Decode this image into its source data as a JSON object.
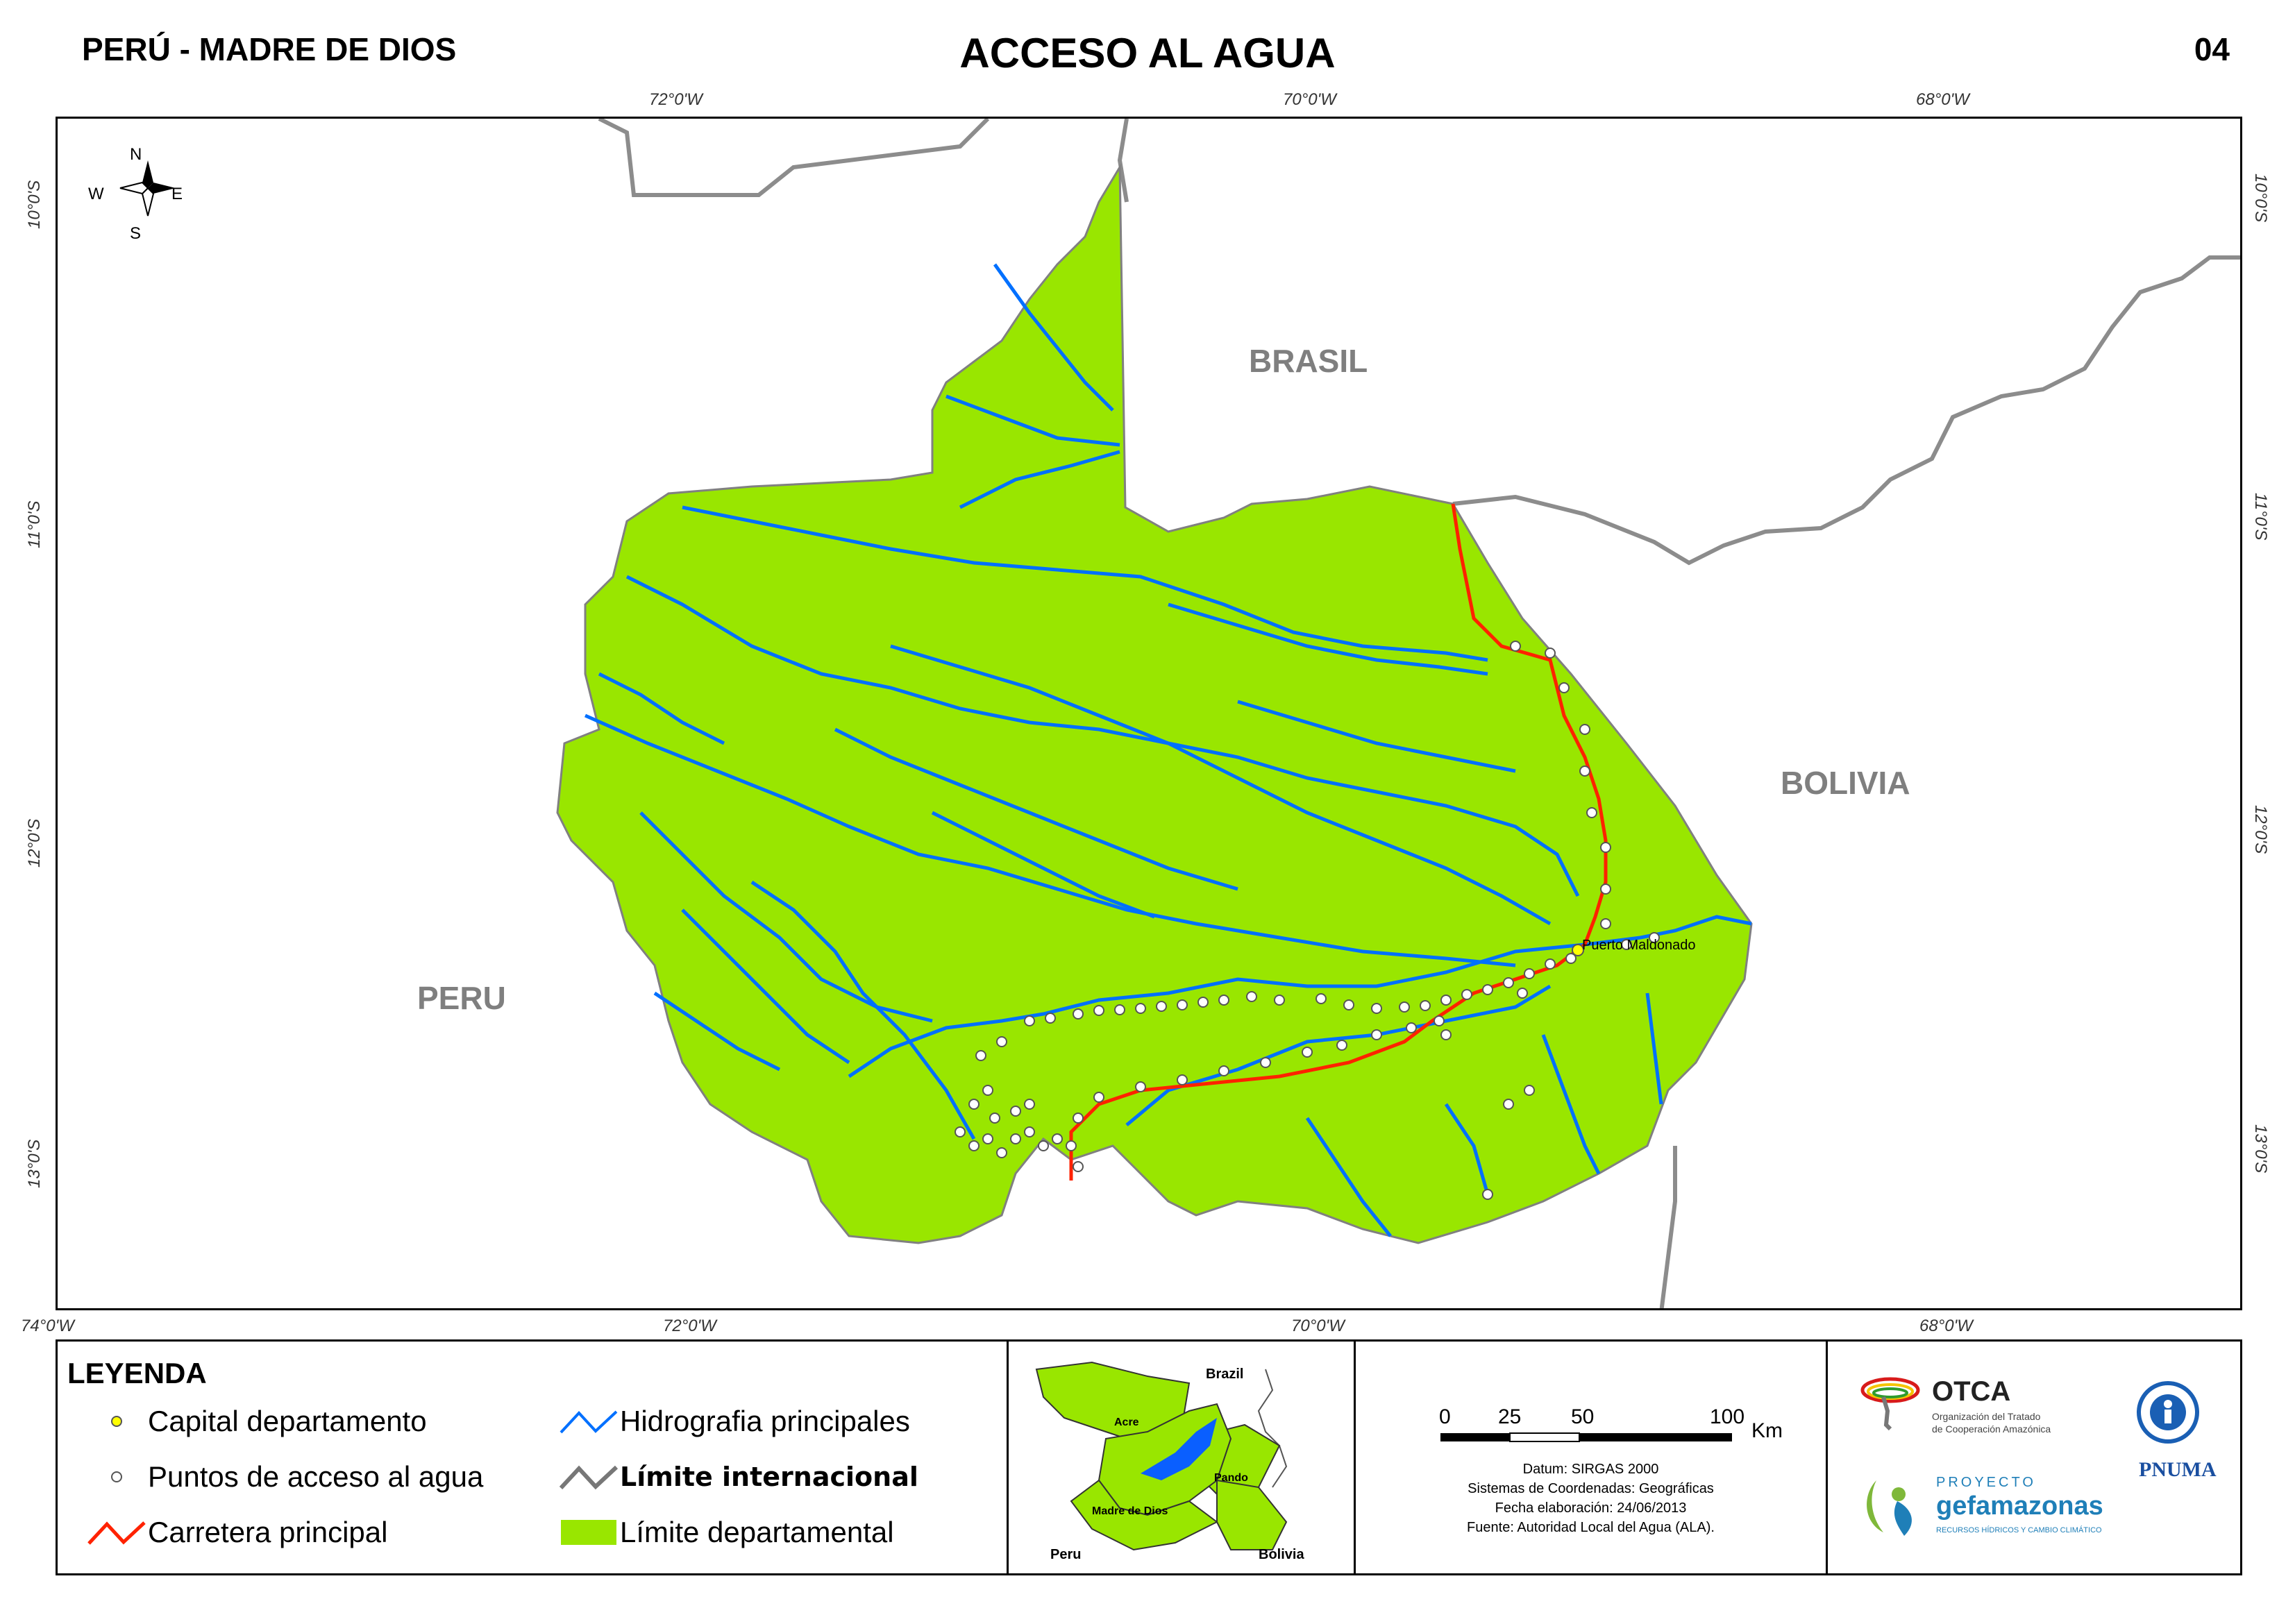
{
  "header": {
    "left": "PERÚ - MADRE DE DIOS",
    "title": "ACCESO AL AGUA",
    "number": "04"
  },
  "map": {
    "ticks_top": [
      "72°0'W",
      "70°0'W",
      "68°0'W"
    ],
    "ticks_bottom": [
      "74°0'W",
      "72°0'W",
      "70°0'W",
      "68°0'W"
    ],
    "ticks_left": [
      "10°0'S",
      "11°0'S",
      "12°0'S",
      "13°0'S"
    ],
    "ticks_right": [
      "10°0'S",
      "11°0'S",
      "12°0'S",
      "13°0'S"
    ],
    "countries": {
      "brasil": "BRASIL",
      "bolivia": "BOLIVIA",
      "peru": "PERU"
    },
    "city_label": "Puerto Maldonado",
    "compass": {
      "n": "N",
      "s": "S",
      "e": "E",
      "w": "W"
    },
    "colors": {
      "department": "#99e600",
      "river": "#0070ff",
      "road": "#ff2200",
      "border": "#8c8c8c"
    }
  },
  "legend": {
    "title": "LEYENDA",
    "items": [
      {
        "label": "Capital departamento",
        "icon": "yellow-dot-icon"
      },
      {
        "label": "Puntos de acceso al agua",
        "icon": "white-dot-icon"
      },
      {
        "label": "Carretera principal",
        "icon": "red-line-icon"
      },
      {
        "label": "Hidrografia principales",
        "icon": "blue-line-icon"
      },
      {
        "label": "Límite internacional",
        "icon": "gray-line-icon"
      },
      {
        "label": "Límite departamental",
        "icon": "green-fill-icon"
      }
    ],
    "inset": {
      "brazil": "Brazil",
      "acre": "Acre",
      "pando": "Pando",
      "madre": "Madre de Dios",
      "peru": "Peru",
      "bolivia": "Bolivia"
    },
    "scale": {
      "t0": "0",
      "t25": "25",
      "t50": "50",
      "t100": "100",
      "unit": "Km"
    },
    "info": [
      "Datum: SIRGAS 2000",
      "Sistemas de Coordenadas: Geográficas",
      "Fecha elaboración: 24/06/2013",
      "Fuente: Autoridad Local del Agua (ALA)."
    ],
    "logos": {
      "otca": "OTCA",
      "otca_sub1": "Organización del Tratado",
      "otca_sub2": "de Cooperación Amazónica",
      "pnuma": "PNUMA",
      "gef_top": "PROYECTO",
      "gef_name": "gefamazonas",
      "gef_sub": "RECURSOS HÍDRICOS Y CAMBIO CLIMÁTICO"
    }
  }
}
